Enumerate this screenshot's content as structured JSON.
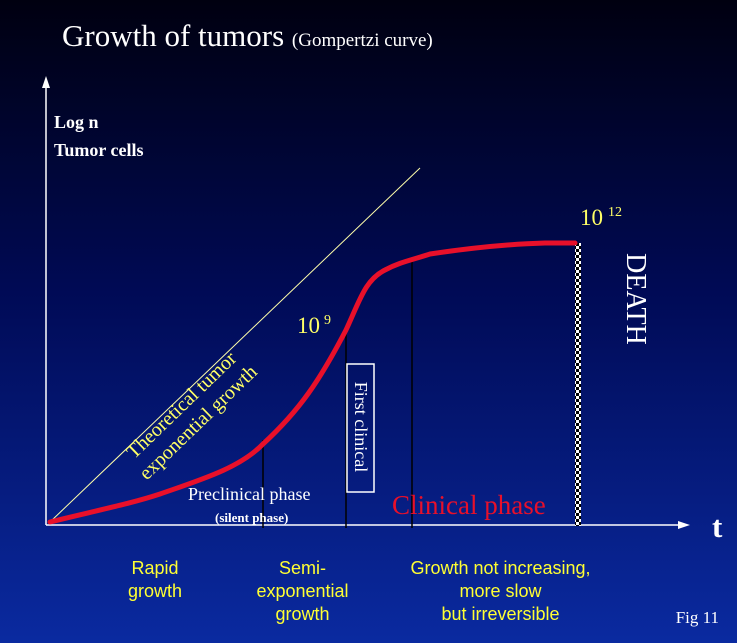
{
  "title": {
    "main": "Growth of tumors",
    "sub": "(Gompertzi curve)"
  },
  "y_axis": {
    "line1": "Log n",
    "line2": "Tumor cells"
  },
  "x_axis": {
    "label": "t"
  },
  "theoretical_line": {
    "line1": "Theoretical tumor",
    "line2": "exponential growth"
  },
  "markers": {
    "ten9_base": "10",
    "ten9_exp": "9",
    "ten12_base": "10",
    "ten12_exp": "12",
    "death": "DEATH"
  },
  "first_clinical": "First clinical",
  "phases": {
    "preclinical": "Preclinical phase",
    "silent": "(silent phase)",
    "clinical": "Clinical phase"
  },
  "bottom_labels": {
    "rapid": [
      "Rapid",
      "growth"
    ],
    "semi": [
      "Semi-",
      "exponential",
      "growth"
    ],
    "slow": [
      "Growth not increasing,",
      "more slow",
      "but irreversible"
    ]
  },
  "fig_label": "Fig 11",
  "colors": {
    "curve": "#e8102a",
    "axis": "#ffffff",
    "theoretical_line": "#ffffaa",
    "label_yellow": "#ffff66",
    "bottom_text": "#ffff33"
  }
}
